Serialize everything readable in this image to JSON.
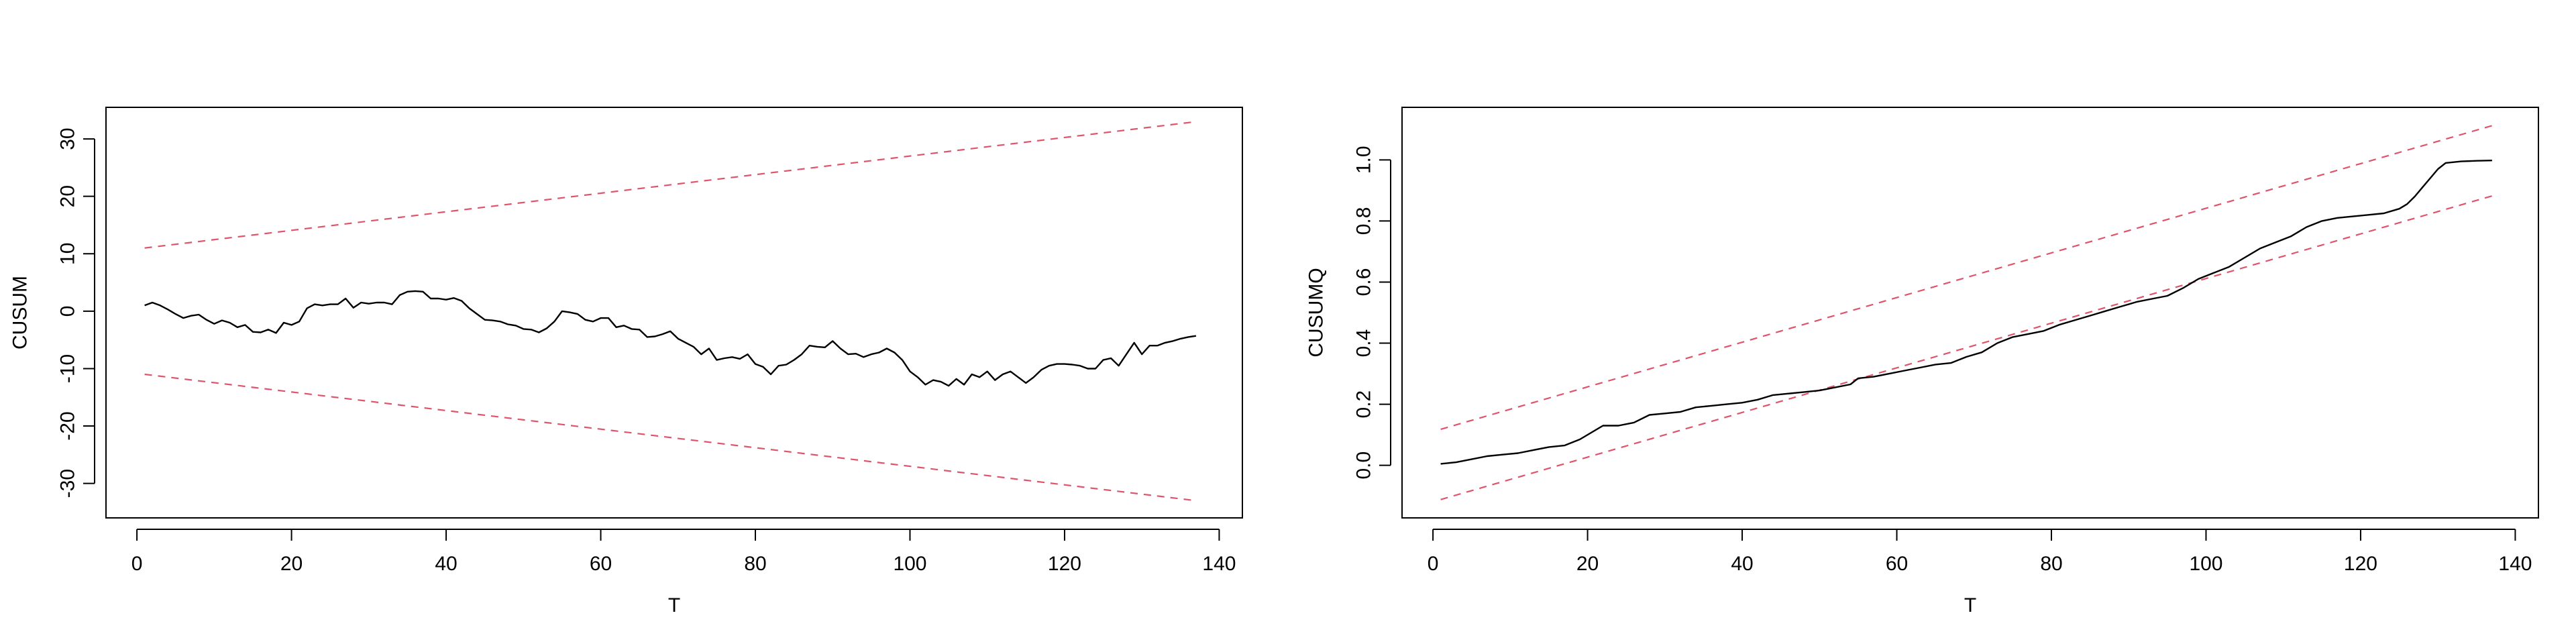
{
  "chart_data": [
    {
      "type": "line",
      "xlabel": "T",
      "ylabel": "CUSUM",
      "xlim": [
        -4,
        143
      ],
      "ylim": [
        -36,
        35.5
      ],
      "x_ticks": [
        0,
        20,
        40,
        60,
        80,
        100,
        120,
        140
      ],
      "y_ticks": [
        -30,
        -20,
        -10,
        0,
        10,
        20,
        30
      ],
      "x_tick_labels": [
        "0",
        "20",
        "40",
        "60",
        "80",
        "100",
        "120",
        "140"
      ],
      "y_tick_labels": [
        "-30",
        "-20",
        "-10",
        "0",
        "10",
        "20",
        "30"
      ],
      "colors": {
        "series": "#000000",
        "bounds": "#df536b"
      },
      "series": [
        {
          "x": [
            1,
            2,
            3,
            4,
            5,
            6,
            7,
            8,
            9,
            10,
            11,
            12,
            13,
            14,
            15,
            16,
            17,
            18,
            19,
            20,
            21,
            22,
            23,
            24,
            25,
            26,
            27,
            28,
            29,
            30,
            31,
            32,
            33,
            34,
            35,
            36,
            37,
            38,
            39,
            40,
            41,
            42,
            43,
            44,
            45,
            46,
            47,
            48,
            49,
            50,
            51,
            52,
            53,
            54,
            55,
            56,
            57,
            58,
            59,
            60,
            61,
            62,
            63,
            64,
            65,
            66,
            67,
            68,
            69,
            70,
            71,
            72,
            73,
            74,
            75,
            76,
            77,
            78,
            79,
            80,
            81,
            82,
            83,
            84,
            85,
            86,
            87,
            88,
            89,
            90,
            91,
            92,
            93,
            94,
            95,
            96,
            97,
            98,
            99,
            100,
            101,
            102,
            103,
            104,
            105,
            106,
            107,
            108,
            109,
            110,
            111,
            112,
            113,
            114,
            115,
            116,
            117,
            118,
            119,
            120,
            121,
            122,
            123,
            124,
            125,
            126,
            127,
            128,
            129,
            130,
            131,
            132,
            133,
            134,
            135,
            136,
            137
          ],
          "y": [
            1,
            1.5,
            1,
            0.3,
            -0.5,
            -1.2,
            -0.8,
            -0.6,
            -1.5,
            -2.2,
            -1.6,
            -2,
            -2.8,
            -2.4,
            -3.6,
            -3.7,
            -3.2,
            -3.8,
            -2,
            -2.4,
            -1.8,
            0.5,
            1.2,
            1,
            1.2,
            1.2,
            2.2,
            0.6,
            1.5,
            1.3,
            1.5,
            1.5,
            1.2,
            2.8,
            3.4,
            3.5,
            3.4,
            2.2,
            2.2,
            2,
            2.3,
            1.8,
            0.5,
            -0.5,
            -1.5,
            -1.6,
            -1.8,
            -2.3,
            -2.5,
            -3.1,
            -3.2,
            -3.7,
            -3,
            -1.8,
            0,
            -0.2,
            -0.5,
            -1.5,
            -1.8,
            -1.2,
            -1.2,
            -2.8,
            -2.5,
            -3.1,
            -3.2,
            -4.5,
            -4.4,
            -4,
            -3.5,
            -4.8,
            -5.5,
            -6.2,
            -7.5,
            -6.5,
            -8.5,
            -8.2,
            -8,
            -8.3,
            -7.5,
            -9.2,
            -9.7,
            -11,
            -9.5,
            -9.3,
            -8.5,
            -7.5,
            -6,
            -6.2,
            -6.3,
            -5.2,
            -6.5,
            -7.5,
            -7.4,
            -8,
            -7.5,
            -7.2,
            -6.5,
            -7.2,
            -8.5,
            -10.5,
            -11.5,
            -12.8,
            -12,
            -12.3,
            -13,
            -11.8,
            -12.8,
            -11,
            -11.5,
            -10.5,
            -12,
            -11,
            -10.5,
            -11.5,
            -12.5,
            -11.5,
            -10.2,
            -9.5,
            -9.2,
            -9.2,
            -9.3,
            -9.5,
            -10,
            -10,
            -8.5,
            -8.2,
            -9.5,
            -7.5,
            -5.5,
            -7.5,
            -6,
            -6,
            -5.5,
            -5.2,
            -4.8,
            -4.5,
            -4.3
          ]
        }
      ],
      "bounds": {
        "upper": {
          "x": [
            1,
            137
          ],
          "y": [
            11,
            33
          ]
        },
        "lower": {
          "x": [
            1,
            137
          ],
          "y": [
            -11,
            -33
          ]
        }
      }
    },
    {
      "type": "line",
      "xlabel": "T",
      "ylabel": "CUSUMQ",
      "xlim": [
        -4,
        143
      ],
      "ylim": [
        -0.172,
        1.172
      ],
      "x_ticks": [
        0,
        20,
        40,
        60,
        80,
        100,
        120,
        140
      ],
      "y_ticks": [
        0,
        0.2,
        0.4,
        0.6,
        0.8,
        1
      ],
      "x_tick_labels": [
        "0",
        "20",
        "40",
        "60",
        "80",
        "100",
        "120",
        "140"
      ],
      "y_tick_labels": [
        "0.0",
        "0.2",
        "0.4",
        "0.6",
        "0.8",
        "1.0"
      ],
      "colors": {
        "series": "#000000",
        "bounds": "#df536b"
      },
      "series": [
        {
          "x": [
            1,
            3,
            5,
            7,
            9,
            11,
            13,
            15,
            17,
            19,
            20,
            22,
            24,
            26,
            28,
            30,
            32,
            34,
            36,
            38,
            40,
            42,
            44,
            46,
            48,
            50,
            52,
            54,
            55,
            57,
            59,
            61,
            63,
            65,
            67,
            69,
            71,
            73,
            75,
            77,
            79,
            81,
            83,
            85,
            87,
            89,
            91,
            93,
            95,
            97,
            99,
            101,
            103,
            105,
            107,
            109,
            111,
            113,
            115,
            117,
            119,
            121,
            123,
            125,
            126,
            127,
            128,
            129,
            130,
            131,
            133,
            135,
            137
          ],
          "y": [
            0.005,
            0.01,
            0.02,
            0.03,
            0.035,
            0.04,
            0.05,
            0.06,
            0.065,
            0.085,
            0.1,
            0.13,
            0.13,
            0.14,
            0.165,
            0.17,
            0.175,
            0.19,
            0.195,
            0.2,
            0.205,
            0.215,
            0.23,
            0.235,
            0.24,
            0.245,
            0.255,
            0.265,
            0.285,
            0.29,
            0.3,
            0.31,
            0.32,
            0.33,
            0.335,
            0.355,
            0.37,
            0.4,
            0.42,
            0.43,
            0.44,
            0.46,
            0.475,
            0.49,
            0.505,
            0.52,
            0.535,
            0.545,
            0.555,
            0.58,
            0.61,
            0.63,
            0.65,
            0.68,
            0.71,
            0.73,
            0.75,
            0.78,
            0.8,
            0.81,
            0.815,
            0.82,
            0.825,
            0.84,
            0.855,
            0.88,
            0.91,
            0.94,
            0.97,
            0.99,
            0.995,
            0.997,
            0.998
          ]
        }
      ],
      "bounds": {
        "upper": {
          "x": [
            1,
            137
          ],
          "y": [
            0.118,
            1.112
          ]
        },
        "lower": {
          "x": [
            1,
            137
          ],
          "y": [
            -0.112,
            0.882
          ]
        }
      }
    }
  ]
}
